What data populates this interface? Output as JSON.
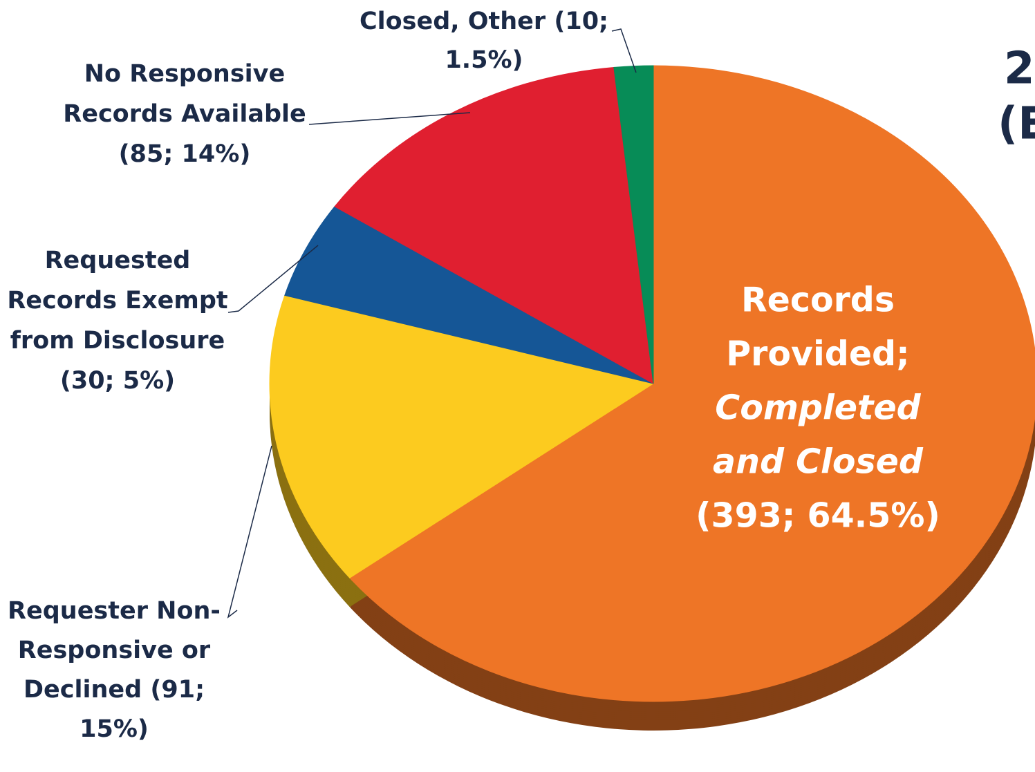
{
  "chart_data": {
    "type": "pie",
    "title_lines": [
      "2",
      "(E"
    ],
    "categories": [
      "Records Provided; Completed and Closed",
      "Requester Non-Responsive or Declined",
      "Requested Records Exempt from Disclosure",
      "No Responsive Records Available",
      "Closed, Other"
    ],
    "values": [
      393,
      91,
      30,
      85,
      10
    ],
    "percents": [
      64.5,
      15,
      5,
      14,
      1.5
    ],
    "value_labels": [
      [
        "Records",
        "Provided;",
        "Completed",
        "and Closed",
        "(393; 64.5%)"
      ],
      [
        "Requester Non-",
        "Responsive or",
        "Declined (91;",
        "15%)"
      ],
      [
        "Requested",
        "Records Exempt",
        "from Disclosure",
        "(30; 5%)"
      ],
      [
        "No Responsive",
        "Records Available",
        "(85; 14%)"
      ],
      [
        "Closed, Other (10;",
        "1.5%)"
      ]
    ],
    "colors": [
      "#ee7526",
      "#fccb1f",
      "#155696",
      "#e01f30",
      "#078c57"
    ],
    "start_angle": 0,
    "direction": "clockwise"
  }
}
